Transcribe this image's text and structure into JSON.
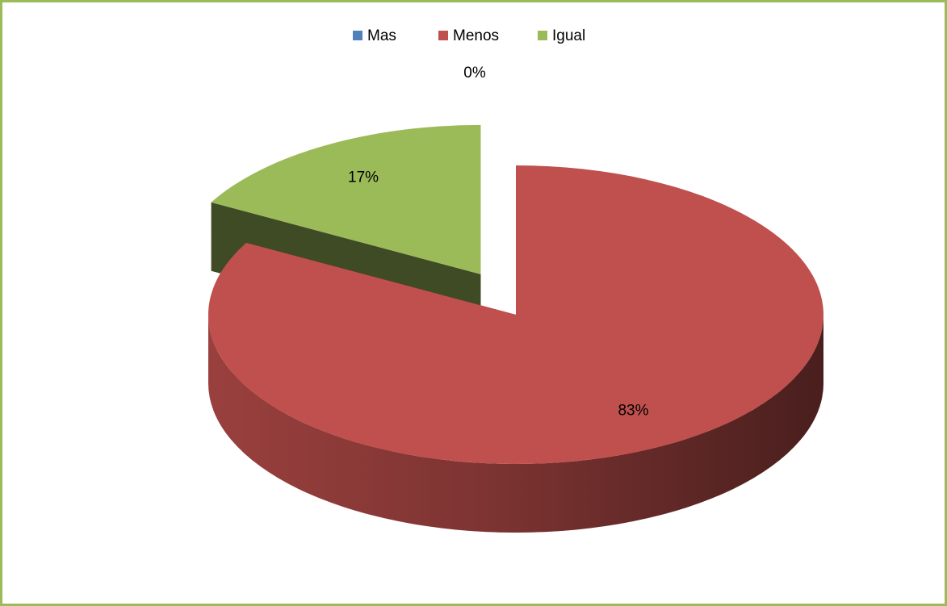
{
  "chart_data": {
    "type": "pie3d",
    "categories": [
      "Mas",
      "Menos",
      "Igual"
    ],
    "values": [
      0,
      83,
      17
    ],
    "value_labels": [
      "0%",
      "83%",
      "17%"
    ],
    "colors": [
      "#4f81bd",
      "#c0504d",
      "#9bbb59"
    ],
    "legend": "top"
  }
}
